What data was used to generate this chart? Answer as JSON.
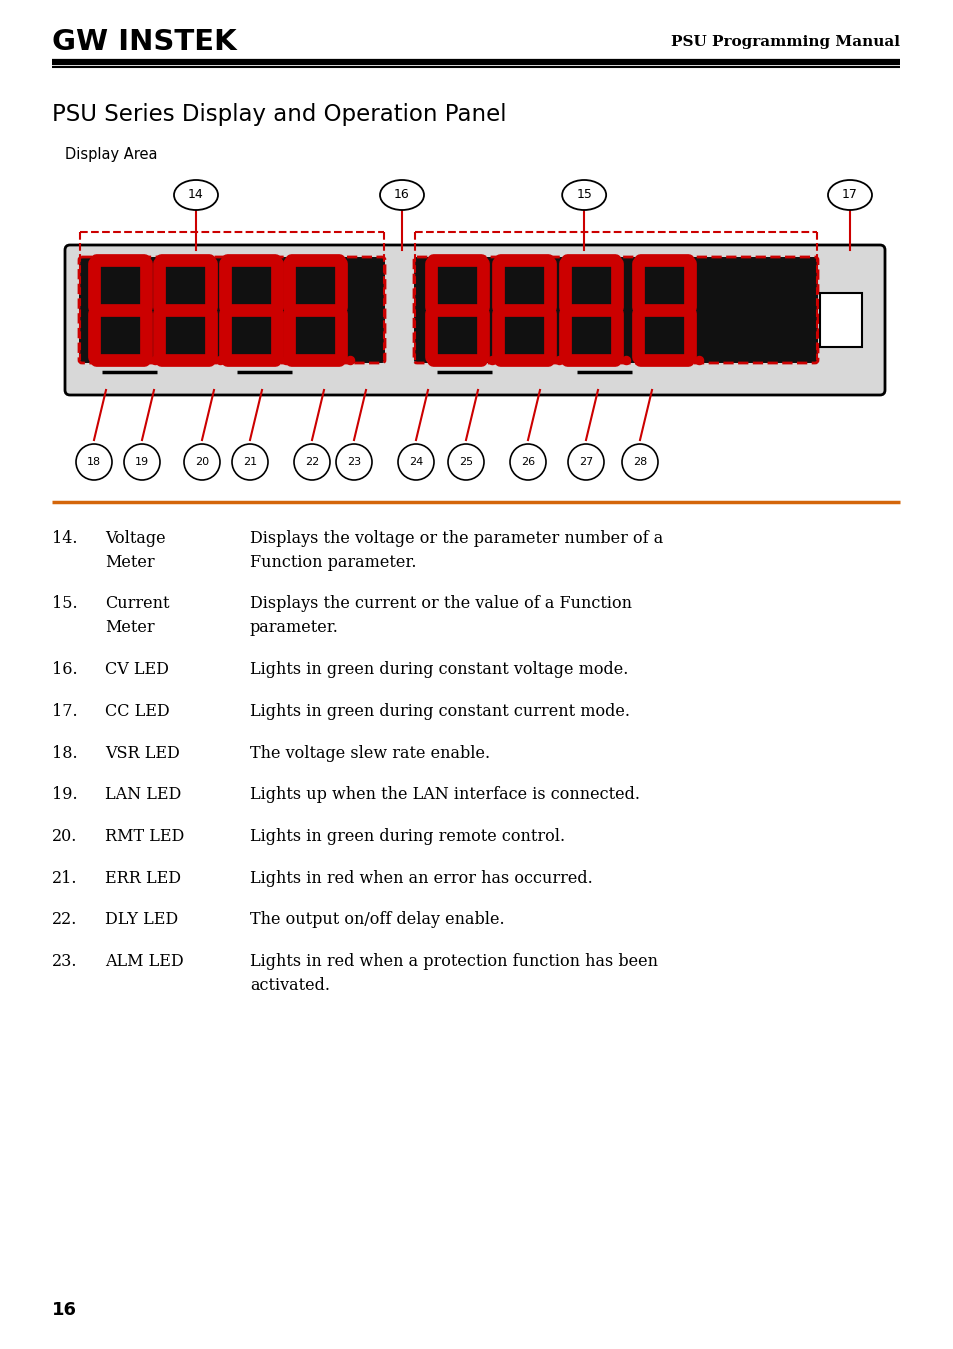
{
  "title": "PSU Series Display and Operation Panel",
  "subtitle": "Display Area",
  "header_logo": "GW INSTEK",
  "header_right": "PSU Programming Manual",
  "page_number": "16",
  "items": [
    {
      "num": "14",
      "label": "Voltage\nMeter",
      "desc": "Displays the voltage or the parameter number of a\nFunction parameter.",
      "two_line_label": true
    },
    {
      "num": "15",
      "label": "Current\nMeter",
      "desc": "Displays the current or the value of a Function\nparameter.",
      "two_line_label": true
    },
    {
      "num": "16",
      "label": "CV LED",
      "desc": "Lights in green during constant voltage mode.",
      "two_line_label": false
    },
    {
      "num": "17",
      "label": "CC LED",
      "desc": "Lights in green during constant current mode.",
      "two_line_label": false
    },
    {
      "num": "18",
      "label": "VSR LED",
      "desc": "The voltage slew rate enable.",
      "two_line_label": false
    },
    {
      "num": "19",
      "label": "LAN LED",
      "desc": "Lights up when the LAN interface is connected.",
      "two_line_label": false
    },
    {
      "num": "20",
      "label": "RMT LED",
      "desc": "Lights in green during remote control.",
      "two_line_label": false
    },
    {
      "num": "21",
      "label": "ERR LED",
      "desc": "Lights in red when an error has occurred.",
      "two_line_label": false
    },
    {
      "num": "22",
      "label": "DLY LED",
      "desc": "The output on/off delay enable.",
      "two_line_label": false
    },
    {
      "num": "23",
      "label": "ALM LED",
      "desc": "Lights in red when a protection function has been\nactivated.",
      "two_line_label": false
    }
  ],
  "bg_color": "#ffffff",
  "text_color": "#000000",
  "accent_color": "#cc0000",
  "orange_line_color": "#d4660a"
}
